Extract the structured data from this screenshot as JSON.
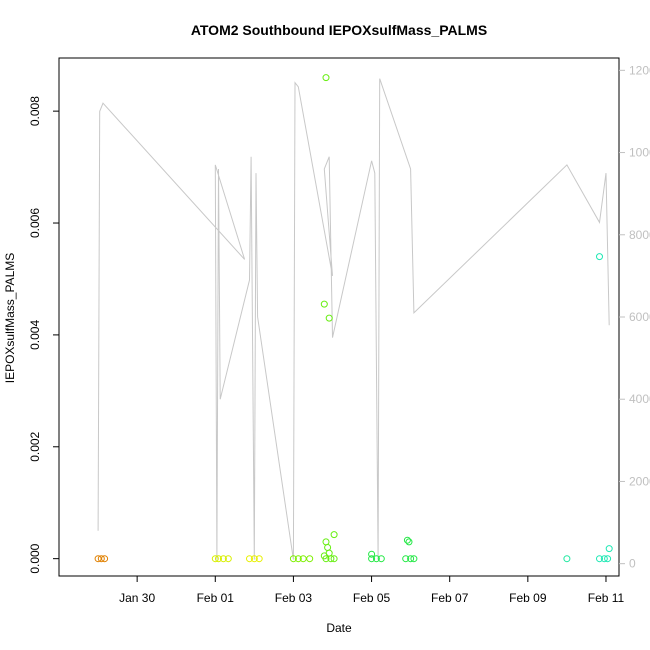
{
  "chart_data": {
    "type": "scatter",
    "title": "ATOM2 Southbound IEPOXsulfMass_PALMS",
    "xlabel": "Date",
    "ylabel": "IEPOXsulfMass_PALMS",
    "x_ticks": [
      "Jan 30",
      "Feb 01",
      "Feb 03",
      "Feb 05",
      "Feb 07",
      "Feb 09",
      "Feb 11"
    ],
    "y_ticks": [
      "0.000",
      "0.002",
      "0.004",
      "0.006",
      "0.008"
    ],
    "y2_ticks": [
      "0",
      "2000",
      "4000",
      "6000",
      "8000",
      "10000",
      "12000"
    ],
    "xlim": [
      "2017-01-28 00:00",
      "2017-02-11 08:00"
    ],
    "ylim": [
      -0.00031,
      0.00895
    ],
    "y2lim": [
      -300,
      12300
    ],
    "grid": false,
    "point_series": {
      "marker": "open-circle",
      "color_by_date": true,
      "points": [
        {
          "x": "2017-01-29 00:00",
          "y": 0.0,
          "color": "#e08000"
        },
        {
          "x": "2017-01-29 02:00",
          "y": 0.0,
          "color": "#e08000"
        },
        {
          "x": "2017-01-29 04:00",
          "y": 0.0,
          "color": "#e08000"
        },
        {
          "x": "2017-02-01 00:00",
          "y": 0.0,
          "color": "#d8ef00"
        },
        {
          "x": "2017-02-01 02:00",
          "y": 0.0,
          "color": "#d8ef00"
        },
        {
          "x": "2017-02-01 05:00",
          "y": 0.0,
          "color": "#d8ef00"
        },
        {
          "x": "2017-02-01 08:00",
          "y": 0.0,
          "color": "#d8ef00"
        },
        {
          "x": "2017-02-01 21:00",
          "y": 0.0,
          "color": "#e8f000"
        },
        {
          "x": "2017-02-02 00:00",
          "y": 0.0,
          "color": "#e8f000"
        },
        {
          "x": "2017-02-02 03:00",
          "y": 0.0,
          "color": "#e8f000"
        },
        {
          "x": "2017-02-03 00:00",
          "y": 0.0,
          "color": "#7ef000"
        },
        {
          "x": "2017-02-03 03:00",
          "y": 0.0,
          "color": "#7ef000"
        },
        {
          "x": "2017-02-03 06:00",
          "y": 0.0,
          "color": "#7ef000"
        },
        {
          "x": "2017-02-03 10:00",
          "y": 0.0,
          "color": "#7ef000"
        },
        {
          "x": "2017-02-03 20:00",
          "y": 0.0086,
          "color": "#66ee10"
        },
        {
          "x": "2017-02-03 19:00",
          "y": 0.00455,
          "color": "#66ee10"
        },
        {
          "x": "2017-02-03 22:00",
          "y": 0.0043,
          "color": "#66ee10"
        },
        {
          "x": "2017-02-04 01:00",
          "y": 0.00043,
          "color": "#66ee10"
        },
        {
          "x": "2017-02-03 20:00",
          "y": 0.0003,
          "color": "#66ee10"
        },
        {
          "x": "2017-02-03 21:00",
          "y": 0.0002,
          "color": "#66ee10"
        },
        {
          "x": "2017-02-03 22:00",
          "y": 0.0001,
          "color": "#66ee10"
        },
        {
          "x": "2017-02-03 19:00",
          "y": 5e-05,
          "color": "#66ee10"
        },
        {
          "x": "2017-02-03 20:00",
          "y": 0.0,
          "color": "#66ee10"
        },
        {
          "x": "2017-02-03 23:00",
          "y": 0.0,
          "color": "#66ee10"
        },
        {
          "x": "2017-02-04 01:00",
          "y": 0.0,
          "color": "#66ee10"
        },
        {
          "x": "2017-02-05 00:00",
          "y": 8e-05,
          "color": "#22e844"
        },
        {
          "x": "2017-02-05 00:00",
          "y": 0.0,
          "color": "#22e844"
        },
        {
          "x": "2017-02-05 03:00",
          "y": 0.0,
          "color": "#22e844"
        },
        {
          "x": "2017-02-05 06:00",
          "y": 0.0,
          "color": "#22e844"
        },
        {
          "x": "2017-02-05 22:00",
          "y": 0.00033,
          "color": "#22e844"
        },
        {
          "x": "2017-02-05 23:00",
          "y": 0.0003,
          "color": "#22e844"
        },
        {
          "x": "2017-02-05 21:00",
          "y": 0.0,
          "color": "#22e844"
        },
        {
          "x": "2017-02-06 00:00",
          "y": 0.0,
          "color": "#22e844"
        },
        {
          "x": "2017-02-06 02:00",
          "y": 0.0,
          "color": "#22e844"
        },
        {
          "x": "2017-02-10 00:00",
          "y": 0.0,
          "color": "#1ee8a0"
        },
        {
          "x": "2017-02-10 20:00",
          "y": 0.0054,
          "color": "#1ee8b4"
        },
        {
          "x": "2017-02-10 20:00",
          "y": 0.0,
          "color": "#1ee8b4"
        },
        {
          "x": "2017-02-10 23:00",
          "y": 0.0,
          "color": "#1ee8b4"
        },
        {
          "x": "2017-02-11 01:00",
          "y": 0.0,
          "color": "#1ee8b4"
        },
        {
          "x": "2017-02-11 02:00",
          "y": 0.00018,
          "color": "#1ee8b4"
        }
      ]
    },
    "line_series": {
      "axis": "right",
      "color": "#c8c8c8",
      "points": [
        {
          "x": "2017-01-29 00:00",
          "y": 800
        },
        {
          "x": "2017-01-29 01:00",
          "y": 11000
        },
        {
          "x": "2017-01-29 03:00",
          "y": 11200
        },
        {
          "x": "2017-02-01 18:00",
          "y": 7400
        },
        {
          "x": "2017-02-01 00:00",
          "y": 9700
        },
        {
          "x": "2017-02-01 01:00",
          "y": 100
        },
        {
          "x": "2017-02-01 02:00",
          "y": 9600
        },
        {
          "x": "2017-02-01 03:00",
          "y": 4000
        },
        {
          "x": "2017-02-01 21:00",
          "y": 6900
        },
        {
          "x": "2017-02-01 22:00",
          "y": 9900
        },
        {
          "x": "2017-02-02 00:00",
          "y": 100
        },
        {
          "x": "2017-02-02 01:00",
          "y": 9500
        },
        {
          "x": "2017-02-02 02:00",
          "y": 6000
        },
        {
          "x": "2017-02-03 00:00",
          "y": 100
        },
        {
          "x": "2017-02-03 01:00",
          "y": 11700
        },
        {
          "x": "2017-02-03 03:00",
          "y": 11600
        },
        {
          "x": "2017-02-04 00:00",
          "y": 7000
        },
        {
          "x": "2017-02-03 19:00",
          "y": 9600
        },
        {
          "x": "2017-02-03 22:00",
          "y": 9900
        },
        {
          "x": "2017-02-04 00:00",
          "y": 5500
        },
        {
          "x": "2017-02-05 00:00",
          "y": 9800
        },
        {
          "x": "2017-02-05 02:00",
          "y": 9500
        },
        {
          "x": "2017-02-05 04:00",
          "y": 100
        },
        {
          "x": "2017-02-05 05:00",
          "y": 11800
        },
        {
          "x": "2017-02-06 00:00",
          "y": 9600
        },
        {
          "x": "2017-02-06 02:00",
          "y": 6100
        },
        {
          "x": "2017-02-10 00:00",
          "y": 9700
        },
        {
          "x": "2017-02-10 20:00",
          "y": 8300
        },
        {
          "x": "2017-02-11 00:00",
          "y": 9500
        },
        {
          "x": "2017-02-11 02:00",
          "y": 5800
        }
      ]
    }
  }
}
